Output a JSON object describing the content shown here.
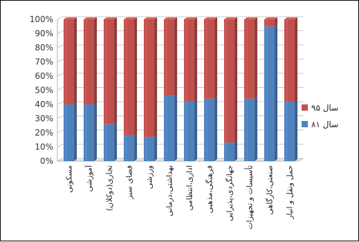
{
  "chart_data": {
    "type": "bar",
    "stacked": true,
    "percent": true,
    "categories": [
      "مسکونی",
      "آموزشی",
      "تجاری(دوکلان)",
      "فضای سبز",
      "ورزشی",
      "بهداشتی،درمانی",
      "اداری،انتظامی",
      "فرهنگی،مذهبی",
      "جهانگردی،پذیرایی",
      "تأسیسات و تجهیزات",
      "صنعتی،کارگاهی",
      "حمل ونقل و انبار"
    ],
    "series": [
      {
        "name": "سال ۸۱",
        "color": "#4f81bd",
        "values": [
          40,
          40,
          26,
          18,
          17,
          46,
          42,
          44,
          13,
          44,
          95,
          42
        ]
      },
      {
        "name": "سال ۹۵",
        "color": "#c0504d",
        "values": [
          60,
          60,
          74,
          82,
          83,
          54,
          58,
          56,
          87,
          56,
          5,
          58
        ]
      }
    ],
    "yticks": [
      "0%",
      "10%",
      "20%",
      "30%",
      "40%",
      "50%",
      "60%",
      "70%",
      "80%",
      "90%",
      "100%"
    ],
    "ylim": [
      0,
      100
    ],
    "grid": true,
    "legend": "right"
  }
}
